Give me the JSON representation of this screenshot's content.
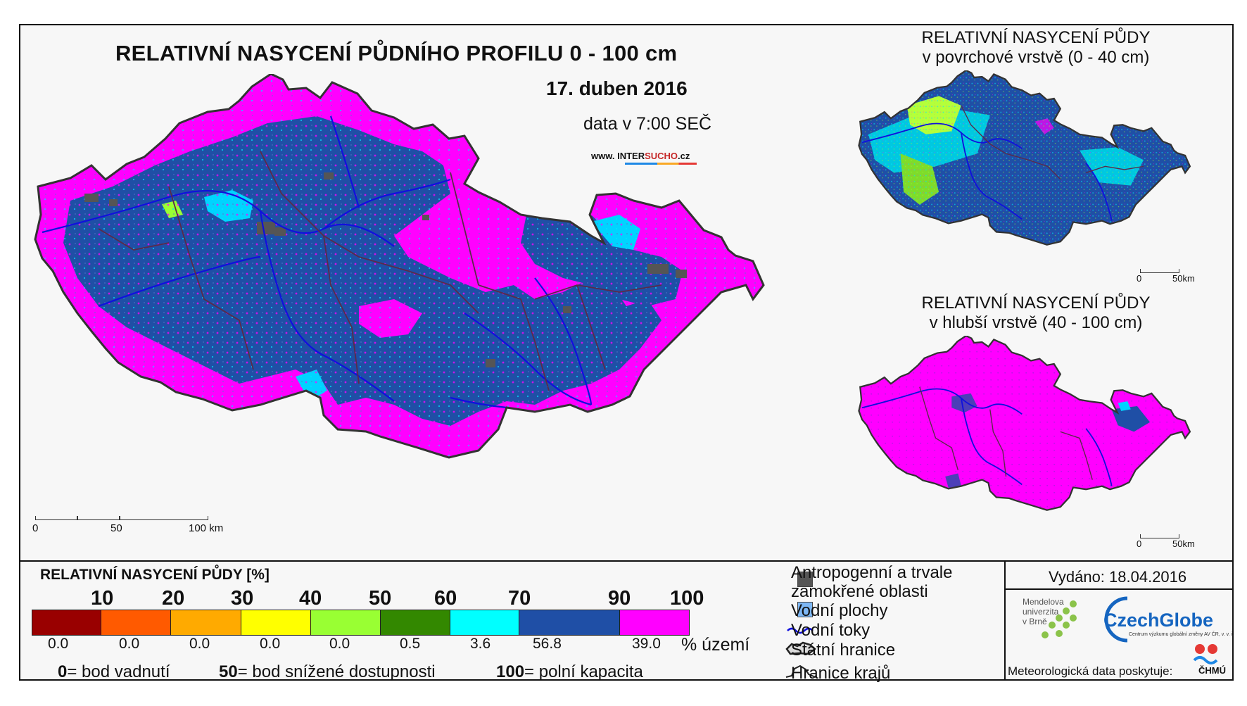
{
  "main_map": {
    "title": "RELATIVNÍ NASYCENÍ PŮDNÍHO PROFILU 0 - 100 cm",
    "date": "17. duben 2016",
    "time": "data v 7:00 SEČ",
    "website_prefix": "www. INTER",
    "website_highlight": "SUCHO",
    "website_suffix": ".cz",
    "scale": {
      "ticks": [
        "0",
        "50",
        "100 km"
      ]
    }
  },
  "inset_surface": {
    "title_line1": "RELATIVNÍ NASYCENÍ PŮDY",
    "title_line2": "v povrchové vrstvě (0 - 40 cm)",
    "scale": {
      "ticks": [
        "0",
        "50km"
      ]
    }
  },
  "inset_deep": {
    "title_line1": "RELATIVNÍ NASYCENÍ PŮDY",
    "title_line2": "v hlubší vrstvě (40 - 100 cm)",
    "scale": {
      "ticks": [
        "0",
        "50km"
      ]
    }
  },
  "legend": {
    "title": "RELATIVNÍ NASYCENÍ PŮDY [%]",
    "breaks": [
      "10",
      "20",
      "30",
      "40",
      "50",
      "60",
      "70",
      "90",
      "100"
    ],
    "classes": [
      {
        "color": "#990000",
        "area_pct": "0.0"
      },
      {
        "color": "#ff5a00",
        "area_pct": "0.0"
      },
      {
        "color": "#ffaa00",
        "area_pct": "0.0"
      },
      {
        "color": "#ffff00",
        "area_pct": "0.0"
      },
      {
        "color": "#99ff33",
        "area_pct": "0.0"
      },
      {
        "color": "#338800",
        "area_pct": "0.5"
      },
      {
        "color": "#00ffff",
        "area_pct": "3.6"
      },
      {
        "color": "#1f4fa6",
        "area_pct": "56.8"
      },
      {
        "color": "#ff00ff",
        "area_pct": "39.0"
      }
    ],
    "area_unit": "% území",
    "notes": [
      {
        "value": "0",
        "text": "= bod vadnutí"
      },
      {
        "value": "50",
        "text": "= bod snížené dostupnosti"
      },
      {
        "value": "100",
        "text": "= polní kapacita"
      }
    ]
  },
  "symbols": {
    "anthropogenic_line1": "Antropogenní a trvale",
    "anthropogenic_line2": "zamokřené oblasti",
    "water_bodies": "Vodní plochy",
    "rivers": "Vodní toky",
    "state_border": "Státní hranice",
    "region_border": "Hranice krajů"
  },
  "credits": {
    "issued": "Vydáno: 18.04.2016",
    "mendel": [
      "Mendelova",
      "univerzita",
      "v Brně"
    ],
    "czechglobe": "CzechGlobe",
    "czechglobe_sub": "Centrum výzkumu globální změny AV ČR, v. v. i.",
    "meteo": "Meteorologická data poskytuje:",
    "chmu": "ČHMÚ"
  },
  "colors": {
    "magenta": "#ff00ff",
    "blue": "#1f4fa6",
    "cyan": "#00ffff",
    "green_light": "#99ff33",
    "anthropogenic": "#555555",
    "water": "#7db7f5",
    "river": "#1010dd",
    "region_border": "#5a2a4a"
  }
}
